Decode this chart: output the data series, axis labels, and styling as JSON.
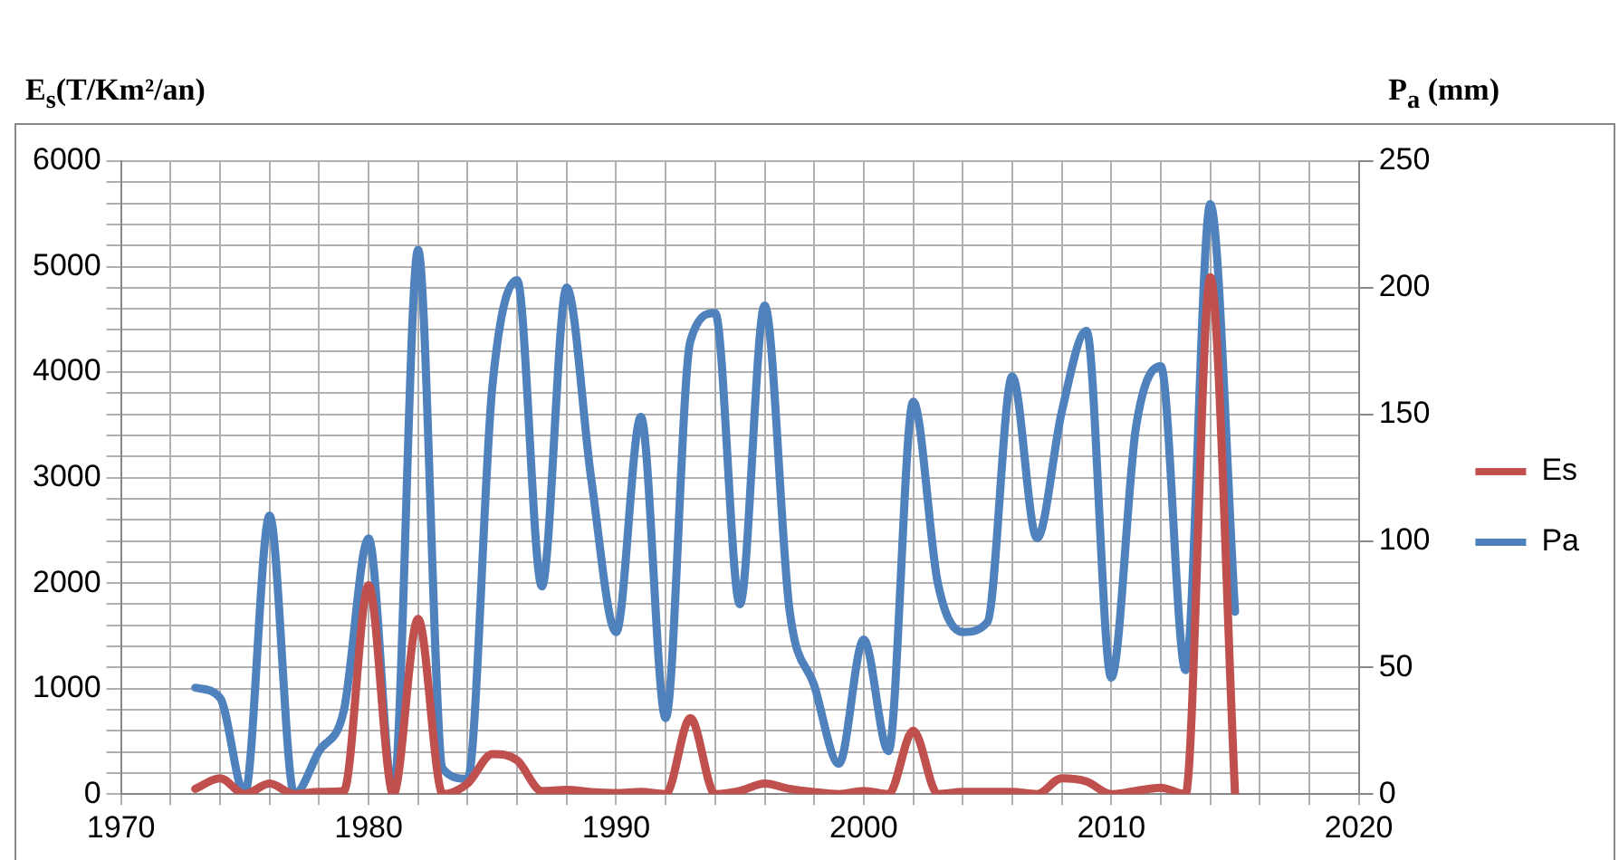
{
  "chart_data": {
    "type": "line",
    "ylabel": "E$_{s}$(T/Km²/an)",
    "y2label": "P$_{a}$ (mm)",
    "x": [
      1973,
      1974,
      1975,
      1976,
      1977,
      1978,
      1979,
      1980,
      1981,
      1982,
      1983,
      1984,
      1985,
      1986,
      1987,
      1988,
      1989,
      1990,
      1991,
      1992,
      1993,
      1994,
      1995,
      1996,
      1997,
      1998,
      1999,
      2000,
      2001,
      2002,
      2003,
      2004,
      2005,
      2006,
      2007,
      2008,
      2009,
      2010,
      2011,
      2012,
      2013,
      2014,
      2015
    ],
    "series": [
      {
        "name": "Es",
        "color": "#c0504d",
        "values": [
          50,
          150,
          0,
          100,
          0,
          20,
          30,
          1980,
          0,
          1660,
          0,
          100,
          380,
          320,
          30,
          40,
          20,
          10,
          20,
          0,
          720,
          0,
          30,
          100,
          50,
          20,
          0,
          30,
          0,
          600,
          0,
          20,
          20,
          20,
          0,
          150,
          120,
          0,
          30,
          60,
          0,
          4900,
          0
        ]
      },
      {
        "name": "Pa",
        "color": "#4f81bd",
        "axis": "y2",
        "values": [
          42,
          38,
          0,
          110,
          0,
          17,
          33,
          101,
          0,
          215,
          10,
          6,
          161,
          203,
          82,
          200,
          124,
          64,
          149,
          30,
          179,
          190,
          75,
          193,
          73,
          43,
          12,
          61,
          17,
          155,
          83,
          64,
          68,
          165,
          101,
          151,
          183,
          46,
          145,
          169,
          49,
          233,
          72
        ]
      }
    ],
    "xlim": [
      1970,
      2020
    ],
    "xticks": [
      1970,
      {
        "value": 1972,
        "label": null
      },
      {
        "value": 1974,
        "label": null
      },
      {
        "value": 1976,
        "label": null
      },
      {
        "value": 1978,
        "label": null
      },
      1980,
      {
        "value": 1982,
        "label": null
      },
      {
        "value": 1984,
        "label": null
      },
      {
        "value": 1986,
        "label": null
      },
      {
        "value": 1988,
        "label": null
      },
      1990,
      {
        "value": 1992,
        "label": null
      },
      {
        "value": 1994,
        "label": null
      },
      {
        "value": 1996,
        "label": null
      },
      {
        "value": 1998,
        "label": null
      },
      2000,
      {
        "value": 2002,
        "label": null
      },
      {
        "value": 2004,
        "label": null
      },
      {
        "value": 2006,
        "label": null
      },
      {
        "value": 2008,
        "label": null
      },
      2010,
      {
        "value": 2012,
        "label": null
      },
      {
        "value": 2014,
        "label": null
      },
      {
        "value": 2016,
        "label": null
      },
      {
        "value": 2018,
        "label": null
      },
      2020
    ],
    "ylim": [
      0,
      6000
    ],
    "yticks": [
      0,
      {
        "value": 200,
        "label": null
      },
      {
        "value": 400,
        "label": null
      },
      {
        "value": 600,
        "label": null
      },
      {
        "value": 800,
        "label": null
      },
      1000,
      {
        "value": 1200,
        "label": null
      },
      {
        "value": 1400,
        "label": null
      },
      {
        "value": 1600,
        "label": null
      },
      {
        "value": 1800,
        "label": null
      },
      2000,
      {
        "value": 2200,
        "label": null
      },
      {
        "value": 2400,
        "label": null
      },
      {
        "value": 2600,
        "label": null
      },
      {
        "value": 2800,
        "label": null
      },
      3000,
      {
        "value": 3200,
        "label": null
      },
      {
        "value": 3400,
        "label": null
      },
      {
        "value": 3600,
        "label": null
      },
      {
        "value": 3800,
        "label": null
      },
      4000,
      {
        "value": 4200,
        "label": null
      },
      {
        "value": 4400,
        "label": null
      },
      {
        "value": 4600,
        "label": null
      },
      {
        "value": 4800,
        "label": null
      },
      5000,
      {
        "value": 5200,
        "label": null
      },
      {
        "value": 5400,
        "label": null
      },
      {
        "value": 5600,
        "label": null
      },
      {
        "value": 5800,
        "label": null
      },
      6000
    ],
    "y2lim": [
      0,
      250
    ],
    "y2ticks": [
      0,
      50,
      100,
      150,
      200,
      250
    ],
    "grid": true,
    "legend": "right",
    "marker": "none",
    "line_style": "solid"
  }
}
